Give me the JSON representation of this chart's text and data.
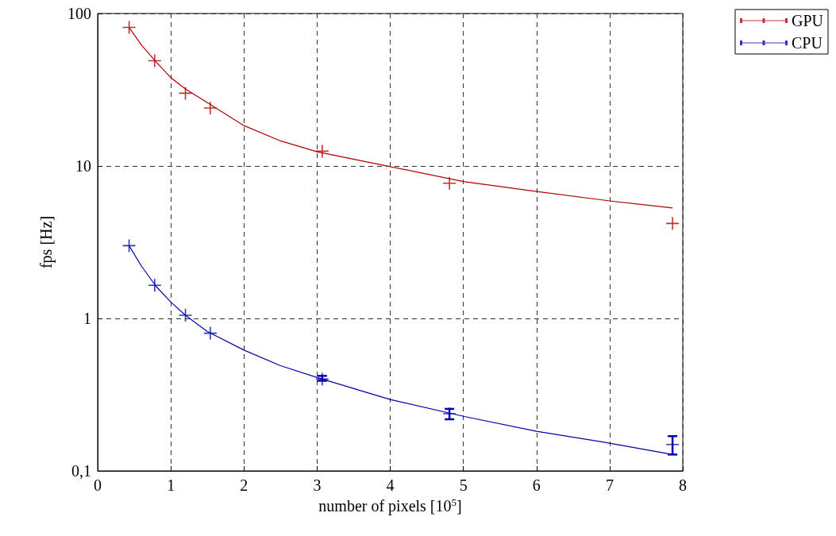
{
  "chart_data": {
    "type": "scatter",
    "xlabel": "number of pixels [10$^{5}$]",
    "ylabel": "fps [Hz]",
    "log": "y",
    "xlim": [
      0,
      8
    ],
    "xticks": [
      0,
      1,
      2,
      3,
      4,
      5,
      6,
      7,
      8
    ],
    "ylim": [
      0.1,
      100
    ],
    "yticks": [
      {
        "value": 0.1,
        "label": "0,1"
      },
      1,
      10,
      100
    ],
    "grid": true,
    "legend": "top right",
    "marker": "cross",
    "series": [
      {
        "name": "GPU",
        "color": "#b00000",
        "x": [
          0.43,
          0.78,
          1.2,
          1.54,
          3.07,
          4.81,
          7.86
        ],
        "values": [
          81,
          49,
          30,
          24,
          12.5,
          7.7,
          4.2
        ]
      },
      {
        "name": "CPU",
        "color": "#0000b0",
        "x": [
          0.43,
          0.78,
          1.2,
          1.54,
          3.07,
          4.81,
          7.86
        ],
        "values": [
          3.0,
          1.65,
          1.05,
          0.8,
          0.4,
          0.237,
          0.149
        ],
        "errors": [
          null,
          null,
          null,
          null,
          [
            0.39,
            0.42
          ],
          [
            0.218,
            0.255
          ],
          [
            0.128,
            0.169
          ]
        ]
      },
      {
        "color": "#b00000",
        "type": "line",
        "marker": "none",
        "x": [
          0.43,
          0.6,
          0.8,
          1,
          1.2,
          1.5,
          2,
          2.5,
          3,
          4,
          5,
          6,
          7,
          7.86
        ],
        "values": [
          81,
          62,
          48,
          38,
          32,
          26,
          18.4,
          14.6,
          12.4,
          9.9,
          7.9,
          6.8,
          5.9,
          5.3
        ]
      },
      {
        "color": "#0000b0",
        "type": "line",
        "marker": "none",
        "x": [
          0.43,
          0.6,
          0.8,
          1,
          1.2,
          1.5,
          2,
          2.5,
          3,
          4,
          5,
          6,
          7,
          7.86
        ],
        "values": [
          3.0,
          2.2,
          1.62,
          1.28,
          1.05,
          0.82,
          0.62,
          0.49,
          0.41,
          0.294,
          0.228,
          0.182,
          0.152,
          0.128
        ]
      }
    ]
  }
}
